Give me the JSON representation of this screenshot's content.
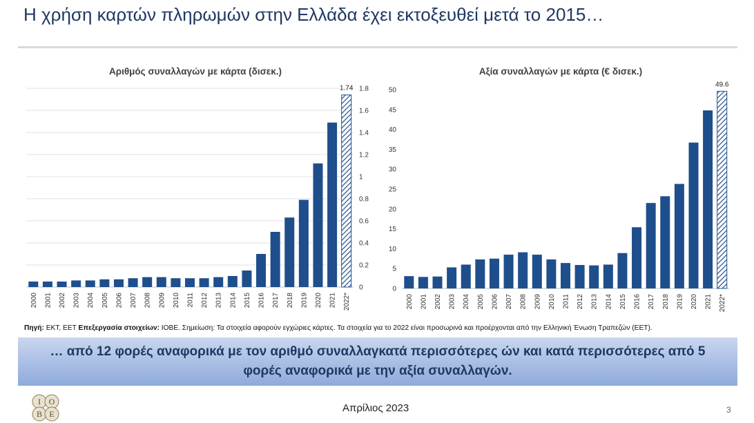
{
  "title": "Η χρήση καρτών πληρωμών στην Ελλάδα έχει εκτοξευθεί μετά το 2015…",
  "source_note": {
    "label1": "Πηγή:",
    "text1": " ΕΚΤ, ΕΕΤ ",
    "label2": "Επεξεργασία στοιχείων:",
    "text2": " ΙΟΒΕ. Σημείωση: Τα στοιχεία αφορούν εγχώριες κάρτες. Τα στοιχεία για το 2022 είναι προσωρινά και προέρχονται από την Ελληνική Ένωση Τραπεζών (ΕΕΤ)."
  },
  "banner": "… από 12 φορές αναφορικά με τον αριθμό συναλλαγκατά περισσότερες ών και κατά περισσότερες από 5 φορές αναφορικά με την αξία συναλλαγών.",
  "footer": {
    "date": "Απρίλιος 2023",
    "page": "3",
    "logo_text": "IOBE"
  },
  "colors": {
    "bar": "#1f4e8c",
    "title": "#1f3864",
    "banner_top": "#c9d6ef",
    "banner_bottom": "#8eaadb"
  },
  "chart_data": [
    {
      "type": "bar",
      "title": "Αριθμός συναλλαγών με κάρτα (δισεκ.)",
      "categories": [
        "2000",
        "2001",
        "2002",
        "2003",
        "2004",
        "2005",
        "2006",
        "2007",
        "2008",
        "2009",
        "2010",
        "2011",
        "2012",
        "2013",
        "2014",
        "2015",
        "2016",
        "2017",
        "2018",
        "2019",
        "2020",
        "2021",
        "2022*"
      ],
      "values": [
        0.05,
        0.05,
        0.05,
        0.06,
        0.06,
        0.07,
        0.07,
        0.08,
        0.09,
        0.09,
        0.08,
        0.08,
        0.08,
        0.09,
        0.1,
        0.15,
        0.3,
        0.5,
        0.63,
        0.79,
        1.12,
        1.49,
        1.74
      ],
      "highlight_last": true,
      "data_labels": {
        "2022*": "1.74"
      },
      "yticks": [
        "0",
        "0.2",
        "0.4",
        "0.6",
        "0.8",
        "1",
        "1.2",
        "1.4",
        "1.6",
        "1.8"
      ],
      "ylim": [
        0,
        1.8
      ],
      "y_axis_side": "right",
      "gridlines": true
    },
    {
      "type": "bar",
      "title": "Αξία συναλλαγών με κάρτα (€ δισεκ.)",
      "categories": [
        "2000",
        "2001",
        "2002",
        "2003",
        "2004",
        "2005",
        "2006",
        "2007",
        "2008",
        "2009",
        "2010",
        "2011",
        "2012",
        "2013",
        "2014",
        "2015",
        "2016",
        "2017",
        "2018",
        "2019",
        "2020",
        "2021",
        "2022*"
      ],
      "values": [
        3.1,
        2.9,
        3.0,
        5.3,
        6.0,
        7.3,
        7.5,
        8.5,
        9.1,
        8.5,
        7.3,
        6.4,
        5.9,
        5.8,
        6.0,
        8.9,
        15.4,
        21.5,
        23.2,
        26.3,
        36.7,
        44.8,
        49.6
      ],
      "highlight_last": true,
      "data_labels": {
        "2022*": "49.6"
      },
      "yticks": [
        "0",
        "5",
        "10",
        "15",
        "20",
        "25",
        "30",
        "35",
        "40",
        "45",
        "50"
      ],
      "ylim": [
        0,
        50
      ],
      "y_axis_side": "left",
      "gridlines": false
    }
  ]
}
